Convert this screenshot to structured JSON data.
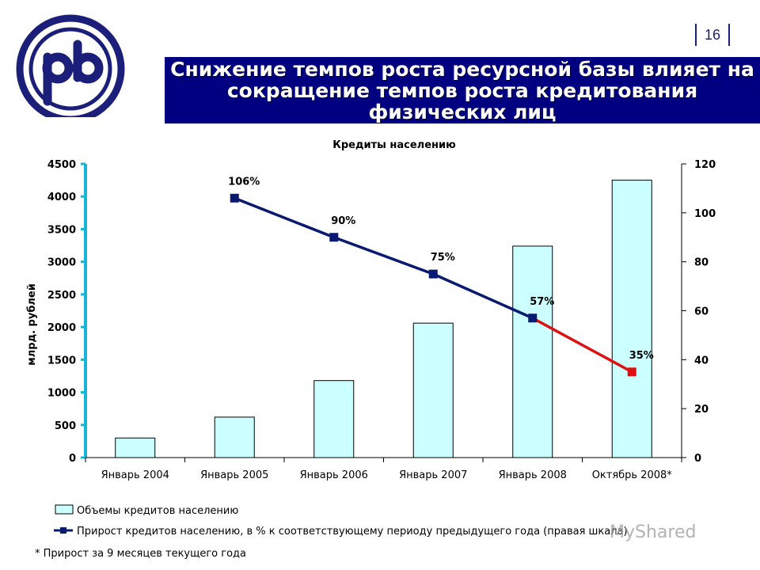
{
  "page_number": "16",
  "title_lines": [
    "Снижение темпов роста ресурсной базы влияет на",
    "сокращение темпов роста кредитования",
    "физических лиц"
  ],
  "footnote": "* Прирост за 9 месяцев текущего года",
  "watermark": "MyShared",
  "colors": {
    "title_bg": "#000080",
    "bar_fill": "#ccffff",
    "line": "#0a1a73",
    "line_last": "#dd1111",
    "axis": "#19b5d9"
  },
  "chart_data": {
    "type": "bar+line",
    "title": "Кредиты населению",
    "ylabel": "млрд. рублей",
    "ylim": [
      0,
      4500
    ],
    "y2lim": [
      0,
      120
    ],
    "yticks": [
      0,
      500,
      1000,
      1500,
      2000,
      2500,
      3000,
      3500,
      4000,
      4500
    ],
    "y2ticks": [
      0,
      20,
      40,
      60,
      80,
      100,
      120
    ],
    "categories": [
      "Январь 2004",
      "Январь 2005",
      "Январь 2006",
      "Январь 2007",
      "Январь 2008",
      "Октябрь 2008*"
    ],
    "series": [
      {
        "name": "Объемы кредитов населению",
        "type": "bar",
        "axis": "left",
        "values": [
          300,
          620,
          1180,
          2060,
          3240,
          4250
        ]
      },
      {
        "name": "Прирост кредитов населению, в % к соответствующему периоду предыдущего года (правая шкала)",
        "type": "line",
        "axis": "right",
        "values": [
          null,
          106,
          90,
          75,
          57,
          35
        ],
        "labels": [
          null,
          "106%",
          "90%",
          "75%",
          "57%",
          "35%"
        ]
      }
    ],
    "legend_position": "bottom-left"
  }
}
